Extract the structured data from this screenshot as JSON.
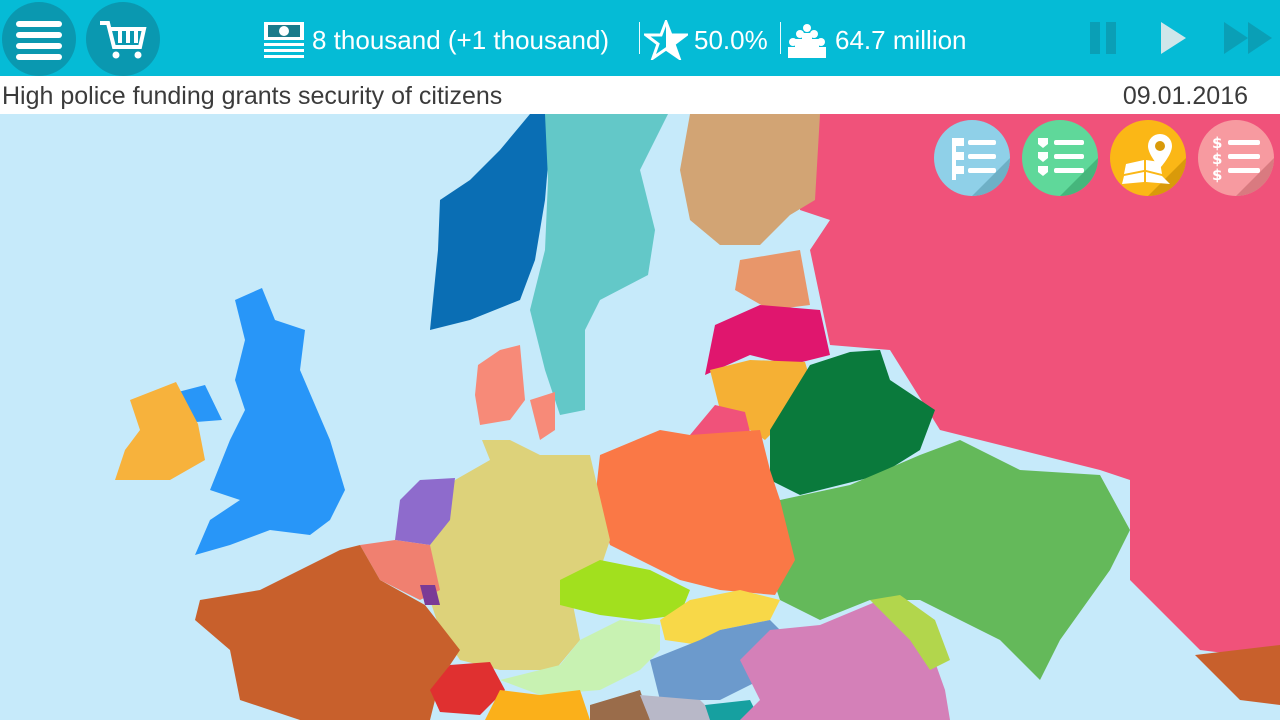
{
  "topbar": {
    "menu_icon": "hamburger-menu-icon",
    "shop_icon": "shopping-cart-icon",
    "money": "8 thousand (+1 thousand)",
    "money_icon": "banknote-stack-icon",
    "rating": "50.0%",
    "rating_icon": "star-icon",
    "population": "64.7 million",
    "population_icon": "people-group-icon",
    "controls": [
      "pause-icon",
      "play-icon",
      "fast-forward-icon"
    ]
  },
  "infobar": {
    "message": "High police funding grants security of citizens",
    "date": "09.01.2016"
  },
  "action_buttons": [
    {
      "icon": "flag-list-icon",
      "color": "#8fd0e8"
    },
    {
      "icon": "shield-list-icon",
      "color": "#5fd89a"
    },
    {
      "icon": "map-pin-icon",
      "color": "#fbb716"
    },
    {
      "icon": "dollar-list-icon",
      "color": "#f79aa0"
    }
  ],
  "colors": {
    "topbar": "#05bbd6",
    "sea": "#c6eafa",
    "russia": "#f0527a",
    "player_country": "#2896f8"
  }
}
